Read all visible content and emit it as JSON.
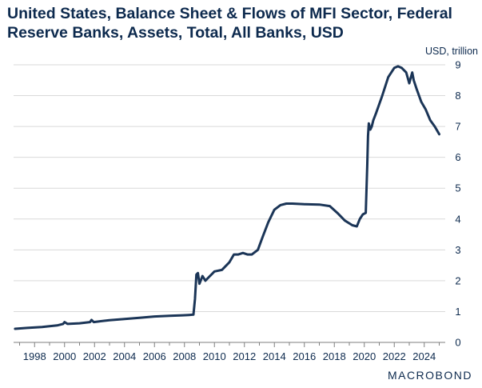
{
  "title": "United States, Balance Sheet & Flows of MFI Sector, Federal Reserve Banks, Assets, Total, All Banks, USD",
  "logo": "MACROBOND",
  "colors": {
    "line": "#1b3557",
    "text": "#0d2a4e",
    "grid": "#d9d9d9",
    "axis": "#7f7f7f"
  },
  "chart_data": {
    "type": "line",
    "title": "United States, Balance Sheet & Flows of MFI Sector, Federal Reserve Banks, Assets, Total, All Banks, USD",
    "ylabel": "USD, trillion",
    "xlim": [
      1996.6,
      2025.4
    ],
    "ylim": [
      0,
      9
    ],
    "yticks": [
      0,
      1,
      2,
      3,
      4,
      5,
      6,
      7,
      8,
      9
    ],
    "xticks": [
      1998,
      2000,
      2002,
      2004,
      2006,
      2008,
      2010,
      2012,
      2014,
      2016,
      2018,
      2020,
      2022,
      2024
    ],
    "grid": "horizontal",
    "y_axis_side": "right",
    "series": [
      {
        "x": [
          1996.7,
          1997.5,
          1998.5,
          1999.5,
          1999.9,
          2000.0,
          2000.2,
          2001.0,
          2001.7,
          2001.8,
          2001.95,
          2003.0,
          2004.0,
          2005.0,
          2006.0,
          2007.0,
          2007.9,
          2008.3,
          2008.6,
          2008.7,
          2008.8,
          2008.9,
          2009.0,
          2009.2,
          2009.4,
          2009.6,
          2009.8,
          2010.0,
          2010.5,
          2011.0,
          2011.3,
          2011.6,
          2011.9,
          2012.2,
          2012.5,
          2012.9,
          2013.2,
          2013.6,
          2014.0,
          2014.4,
          2014.8,
          2015.2,
          2016.0,
          2017.0,
          2017.7,
          2018.2,
          2018.7,
          2019.2,
          2019.5,
          2019.7,
          2019.9,
          2020.1,
          2020.2,
          2020.25,
          2020.3,
          2020.4,
          2020.5,
          2020.6,
          2020.8,
          2021.2,
          2021.6,
          2022.0,
          2022.25,
          2022.5,
          2022.8,
          2023.0,
          2023.2,
          2023.3,
          2023.5,
          2023.8,
          2024.1,
          2024.4,
          2024.7,
          2025.0
        ],
        "y": [
          0.44,
          0.47,
          0.5,
          0.55,
          0.6,
          0.66,
          0.6,
          0.62,
          0.66,
          0.73,
          0.66,
          0.72,
          0.76,
          0.8,
          0.84,
          0.86,
          0.88,
          0.89,
          0.9,
          1.4,
          2.2,
          2.25,
          1.9,
          2.15,
          2.0,
          2.1,
          2.2,
          2.3,
          2.35,
          2.6,
          2.85,
          2.85,
          2.9,
          2.85,
          2.85,
          3.0,
          3.4,
          3.9,
          4.3,
          4.45,
          4.5,
          4.5,
          4.48,
          4.47,
          4.42,
          4.2,
          3.95,
          3.8,
          3.76,
          4.0,
          4.15,
          4.2,
          5.8,
          6.7,
          7.1,
          6.9,
          7.0,
          7.2,
          7.45,
          8.0,
          8.6,
          8.9,
          8.95,
          8.9,
          8.75,
          8.4,
          8.75,
          8.5,
          8.2,
          7.8,
          7.55,
          7.2,
          7.0,
          6.75
        ]
      }
    ]
  }
}
